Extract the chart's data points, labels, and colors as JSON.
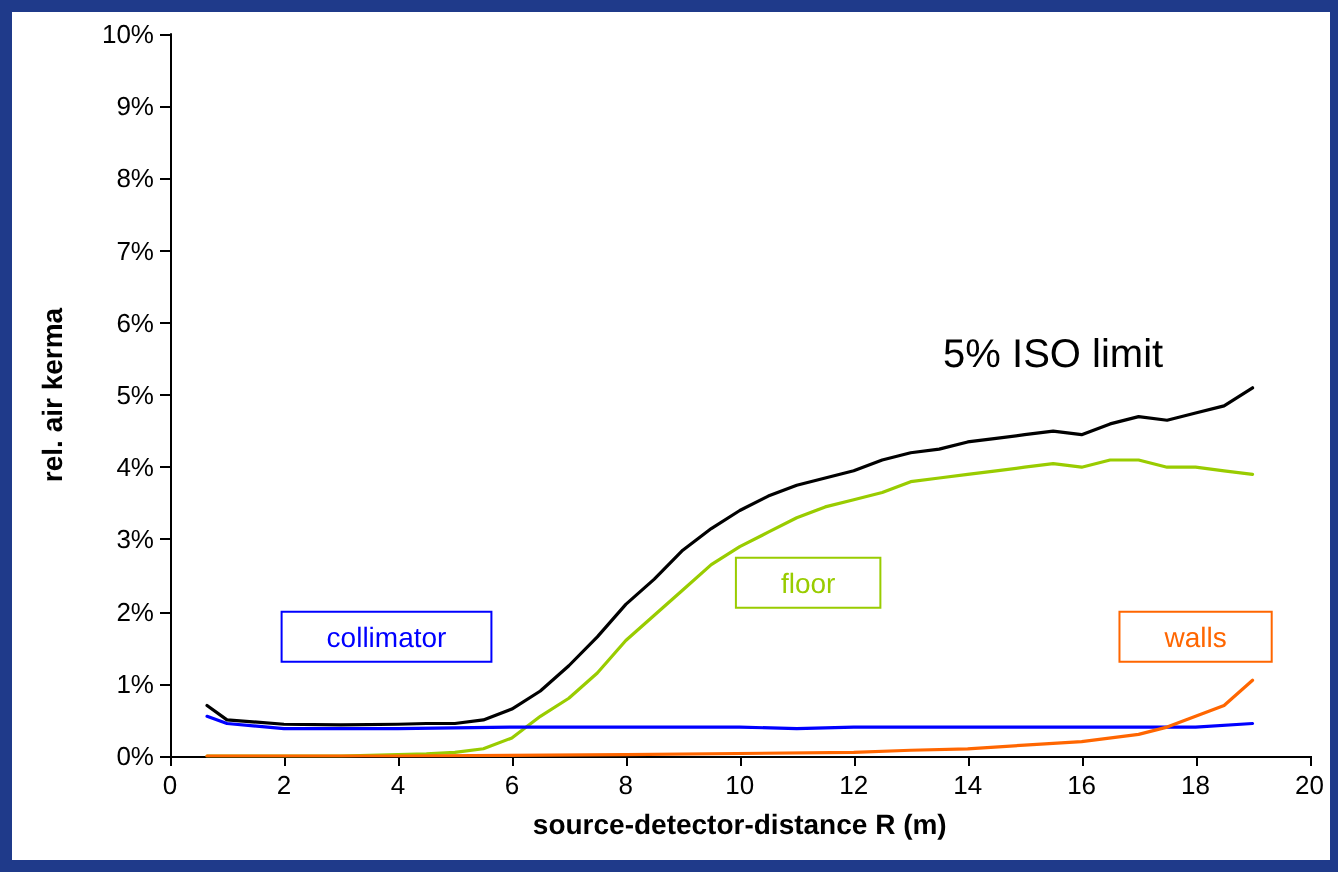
{
  "chart_data": {
    "type": "line",
    "xlabel": "source-detector-distance R (m)",
    "ylabel": "rel. air kerma",
    "xlim": [
      0,
      20
    ],
    "xticks": [
      0,
      2,
      4,
      6,
      8,
      10,
      12,
      14,
      16,
      18,
      20
    ],
    "ylim": [
      0,
      10
    ],
    "yticks": [
      {
        "value": 0,
        "label": "0%"
      },
      {
        "value": 1,
        "label": "1%"
      },
      {
        "value": 2,
        "label": "2%"
      },
      {
        "value": 3,
        "label": "3%"
      },
      {
        "value": 4,
        "label": "4%"
      },
      {
        "value": 5,
        "label": "5%"
      },
      {
        "value": 6,
        "label": "6%"
      },
      {
        "value": 7,
        "label": "7%"
      },
      {
        "value": 8,
        "label": "8%"
      },
      {
        "value": 9,
        "label": "9%"
      },
      {
        "value": 10,
        "label": "10%"
      }
    ],
    "grid": false,
    "legend": false,
    "marker": "none",
    "line_style": "solid",
    "annotations": [
      "5% ISO limit"
    ],
    "series": [
      {
        "color": "#000000",
        "x": [
          0.65,
          1,
          2,
          3,
          4,
          4.5,
          5,
          5.5,
          6,
          6.5,
          7,
          7.5,
          8,
          8.5,
          9,
          9.5,
          10,
          10.5,
          11,
          11.5,
          12,
          12.5,
          13,
          13.5,
          14,
          14.5,
          15,
          15.5,
          16,
          16.5,
          17,
          17.5,
          18,
          18.5,
          19
        ],
        "values": [
          0.7,
          0.5,
          0.44,
          0.43,
          0.44,
          0.45,
          0.45,
          0.5,
          0.65,
          0.9,
          1.25,
          1.65,
          2.1,
          2.45,
          2.85,
          3.15,
          3.4,
          3.6,
          3.75,
          3.85,
          3.95,
          4.1,
          4.2,
          4.25,
          4.35,
          4.4,
          4.45,
          4.5,
          4.45,
          4.6,
          4.7,
          4.65,
          4.75,
          4.85,
          5.1
        ]
      },
      {
        "name": "floor",
        "color": "#99cc00",
        "x": [
          0.65,
          2,
          3,
          4,
          4.5,
          5,
          5.5,
          6,
          6.5,
          7,
          7.5,
          8,
          8.5,
          9,
          9.5,
          10,
          10.5,
          11,
          11.5,
          12,
          12.5,
          13,
          13.5,
          14,
          14.5,
          15,
          15.5,
          16,
          16.5,
          17,
          17.5,
          18,
          18.5,
          19
        ],
        "values": [
          0,
          0,
          0,
          0.02,
          0.03,
          0.05,
          0.1,
          0.25,
          0.55,
          0.8,
          1.15,
          1.6,
          1.95,
          2.3,
          2.65,
          2.9,
          3.1,
          3.3,
          3.45,
          3.55,
          3.65,
          3.8,
          3.85,
          3.9,
          3.95,
          4.0,
          4.05,
          4.0,
          4.1,
          4.1,
          4.0,
          4.0,
          3.95,
          3.9
        ]
      },
      {
        "name": "collimator",
        "color": "#0000ff",
        "x": [
          0.65,
          1,
          2,
          4,
          6,
          8,
          10,
          11,
          12,
          14,
          16,
          18,
          19
        ],
        "values": [
          0.55,
          0.45,
          0.38,
          0.38,
          0.4,
          0.4,
          0.4,
          0.38,
          0.4,
          0.4,
          0.4,
          0.4,
          0.45
        ]
      },
      {
        "name": "walls",
        "color": "#ff6600",
        "x": [
          0.65,
          4,
          8,
          12,
          13,
          14,
          15,
          16,
          17,
          17.5,
          18,
          18.5,
          19
        ],
        "values": [
          0,
          0,
          0.02,
          0.05,
          0.08,
          0.1,
          0.15,
          0.2,
          0.3,
          0.4,
          0.55,
          0.7,
          1.05
        ]
      }
    ]
  }
}
